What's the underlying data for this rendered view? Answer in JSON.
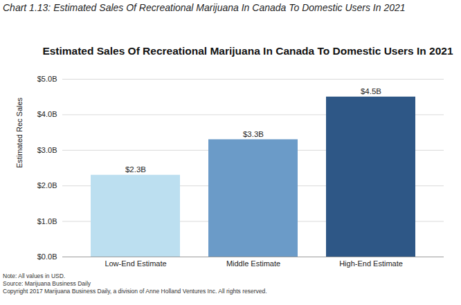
{
  "chart_data": {
    "type": "bar",
    "header": "Chart 1.13: Estimated Sales Of Recreational Marijuana In Canada To Domestic Users In 2021",
    "title": "Estimated Sales Of Recreational Marijuana In Canada To Domestic Users In 2021",
    "y_label": "Estimated Rec Sales",
    "categories": [
      "Low-End Estimate",
      "Middle Estimate",
      "High-End Estimate"
    ],
    "values": [
      2.3,
      3.3,
      4.5
    ],
    "value_labels": [
      "$2.3B",
      "$3.3B",
      "$4.5B"
    ],
    "colors": [
      "#bcdff0",
      "#6b9bc8",
      "#2e5786"
    ],
    "ylim": [
      0,
      5
    ],
    "yticks": [
      {
        "value": 0,
        "label": "$0.0B"
      },
      {
        "value": 1,
        "label": "$1.0B"
      },
      {
        "value": 2,
        "label": "$2.0B"
      },
      {
        "value": 3,
        "label": "$3.0B"
      },
      {
        "value": 4,
        "label": "$4.0B"
      },
      {
        "value": 5,
        "label": "$5.0B"
      }
    ],
    "grid": true,
    "data_labels": true,
    "notes": [
      "Note: All values in USD.",
      "Source: Marijuana Business Daily",
      "Copyright 2017 Marijuana Business Daily, a division of Anne Holland Ventures Inc. All rights reserved."
    ]
  }
}
